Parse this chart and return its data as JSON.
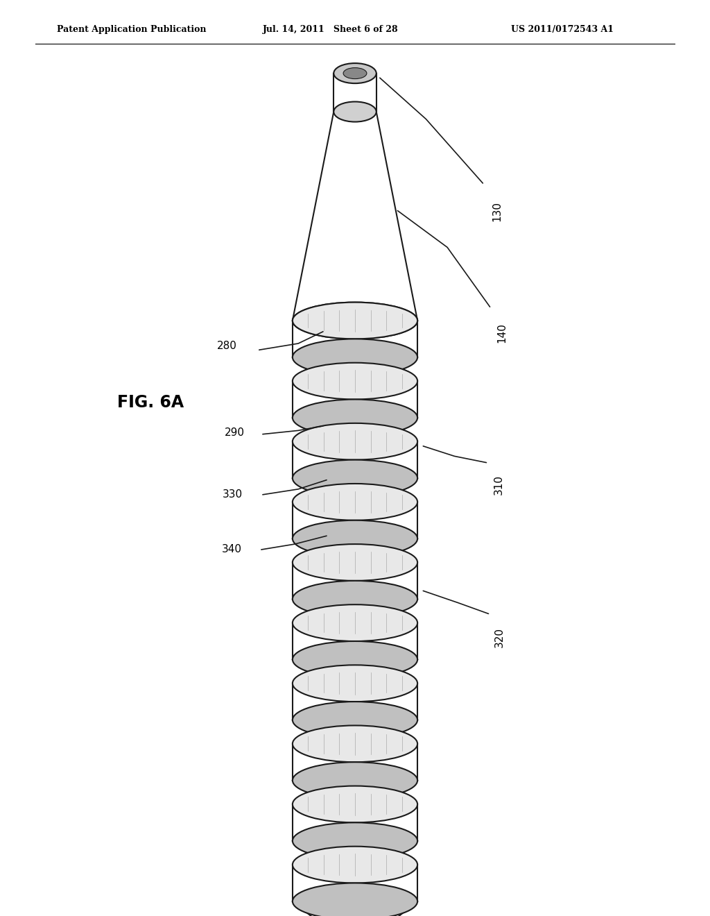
{
  "bg_color": "#ffffff",
  "line_color": "#1a1a1a",
  "header_left": "Patent Application Publication",
  "header_mid": "Jul. 14, 2011   Sheet 6 of 28",
  "header_right": "US 2011/0172543 A1",
  "fig_label": "FIG. 6A",
  "label_130": "130",
  "label_140": "140",
  "label_280": "280",
  "label_290": "290",
  "label_310": "310",
  "label_320": "320",
  "label_330": "330",
  "label_340": "340"
}
